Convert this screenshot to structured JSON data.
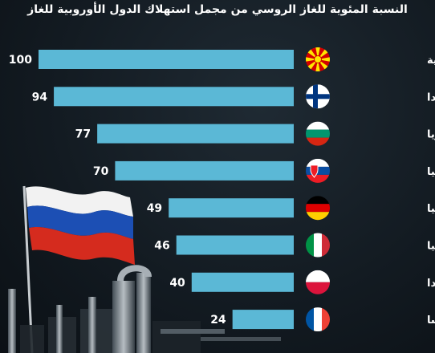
{
  "chart_data": {
    "type": "bar",
    "title": "النسبة المئوية للغاز الروسي من مجمل استهلاك الدول الأوروبية للغاز",
    "categories": [
      "مقدونيا الشمالية",
      "فنلندا",
      "بلغاريا",
      "سلوفاكيا",
      "ألمانيا",
      "إيطاليا",
      "بولندا",
      "فرنسا"
    ],
    "flags": [
      "north-macedonia-flag-icon",
      "finland-flag-icon",
      "bulgaria-flag-icon",
      "slovakia-flag-icon",
      "germany-flag-icon",
      "italy-flag-icon",
      "poland-flag-icon",
      "france-flag-icon"
    ],
    "values": [
      100,
      94,
      77,
      70,
      49,
      46,
      40,
      24
    ],
    "value_labels": [
      "100",
      "94",
      "77",
      "70",
      "49",
      "46",
      "40",
      "24"
    ],
    "xlim": [
      0,
      100
    ],
    "orientation": "horizontal-right-aligned",
    "bar_color": "#5bb8d6"
  }
}
